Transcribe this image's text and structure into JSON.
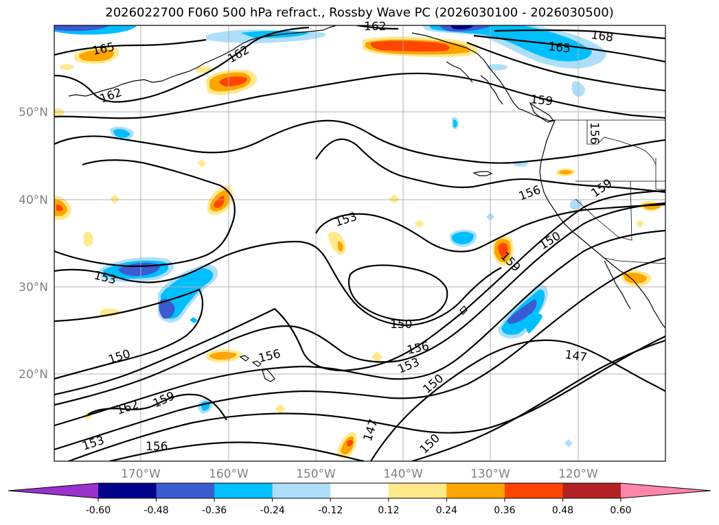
{
  "title": "2026022700 F060 500 hPa refract., Rossby Wave PC (2026030100 - 2026030500)",
  "map": {
    "lat_labels": [
      "50°N",
      "40°N",
      "30°N",
      "20°N"
    ],
    "lon_labels": [
      "170°W",
      "160°W",
      "150°W",
      "140°W",
      "130°W",
      "120°W"
    ],
    "contour_labels": [
      "162",
      "168",
      "165",
      "165",
      "162",
      "162",
      "159",
      "156",
      "159",
      "156",
      "153",
      "153",
      "150",
      "159",
      "150",
      "156",
      "150",
      "156",
      "153",
      "150",
      "147",
      "162",
      "159",
      "153",
      "156",
      "147",
      "150"
    ]
  },
  "colorbar": {
    "ticks": [
      "-0.60",
      "-0.48",
      "-0.36",
      "-0.24",
      "-0.12",
      "0.12",
      "0.24",
      "0.36",
      "0.48",
      "0.60"
    ],
    "colors": [
      "#9932CC",
      "#00008B",
      "#3B5BD0",
      "#00BFFF",
      "#ADDFFA",
      "#FFFFFF",
      "#FFE98A",
      "#FFA500",
      "#FF4500",
      "#B22222",
      "#FF85A9"
    ]
  }
}
